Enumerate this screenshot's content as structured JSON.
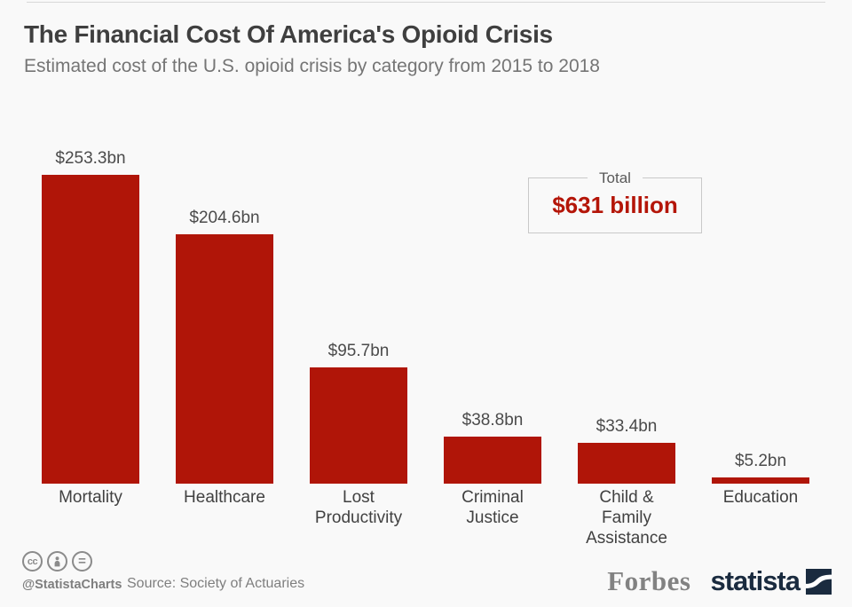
{
  "page": {
    "title": "The Financial Cost Of America's Opioid Crisis",
    "subtitle": "Estimated cost of the U.S. opioid crisis by category from 2015 to 2018"
  },
  "chart_data": {
    "type": "bar",
    "title": "The Financial Cost Of America's Opioid Crisis",
    "subtitle": "Estimated cost of the U.S. opioid crisis by category from 2015 to 2018",
    "categories": [
      "Mortality",
      "Healthcare",
      "Lost Productivity",
      "Criminal Justice",
      "Child & Family Assistance",
      "Education"
    ],
    "category_label_lines": [
      [
        "Mortality"
      ],
      [
        "Healthcare"
      ],
      [
        "Lost",
        "Productivity"
      ],
      [
        "Criminal",
        "Justice"
      ],
      [
        "Child & Family",
        "Assistance"
      ],
      [
        "Education"
      ]
    ],
    "values": [
      253.3,
      204.6,
      95.7,
      38.8,
      33.4,
      5.2
    ],
    "value_labels": [
      "$253.3bn",
      "$204.6bn",
      "$95.7bn",
      "$38.8bn",
      "$33.4bn",
      "$5.2bn"
    ],
    "unit": "billion USD",
    "bar_color": "#b01508",
    "ylim": [
      0,
      260
    ],
    "grid": false,
    "legend": false,
    "annotation": {
      "label": "Total",
      "value": "$631 billion"
    }
  },
  "total_box": {
    "label": "Total",
    "value": "$631 billion",
    "value_color": "#b41508"
  },
  "footer": {
    "license_icons": [
      "cc-icon",
      "attribution-icon",
      "no-derivatives-icon"
    ],
    "cc_glyph": "cc",
    "equals_glyph": "=",
    "handle": "@StatistaCharts",
    "source": "Source: Society of Actuaries",
    "brands": {
      "forbes": "Forbes",
      "statista": "statista"
    },
    "colors": {
      "forbes": "#828282",
      "statista": "#1a2b3f"
    }
  }
}
